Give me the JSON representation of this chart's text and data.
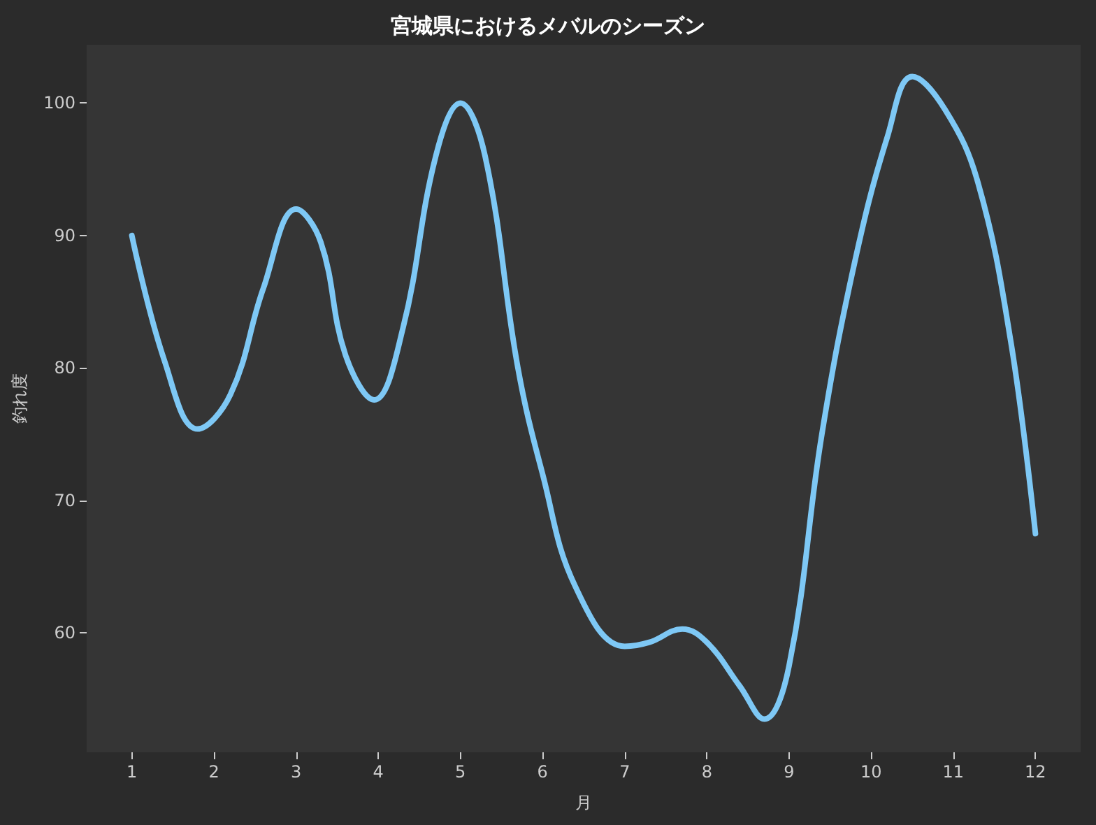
{
  "chart_data": {
    "type": "line",
    "title": "宮城県におけるメバルのシーズン",
    "xlabel": "月",
    "ylabel": "釣れ度",
    "series": [
      {
        "color": "#7ec8f5",
        "x": [
          1,
          1.4,
          1.8,
          2.2,
          2.6,
          3,
          3.3,
          3.6,
          3.95,
          4.3,
          4.7,
          5,
          5.3,
          5.7,
          6,
          6.4,
          7,
          7.3,
          7.7,
          8,
          8.4,
          8.7,
          9,
          9.4,
          9.8,
          10.2,
          10.5,
          10.9,
          11.3,
          11.7,
          12
        ],
        "values": [
          90,
          80.5,
          75.4,
          78,
          86,
          92,
          89.5,
          81,
          77.6,
          83,
          96,
          100,
          96,
          80,
          72,
          63.5,
          59,
          59.3,
          60.3,
          59.3,
          56,
          53.5,
          57.5,
          75,
          88,
          97.5,
          102,
          99.5,
          94,
          82,
          67.5
        ]
      }
    ],
    "xlim": [
      0.45,
      12.55
    ],
    "xticks": [
      1,
      2,
      3,
      4,
      5,
      6,
      7,
      8,
      9,
      10,
      11,
      12
    ],
    "ylim": [
      51,
      104.4
    ],
    "yticks": [
      60,
      70,
      80,
      90,
      100
    ],
    "grid": false,
    "marker": "none",
    "line_style": "solid"
  }
}
